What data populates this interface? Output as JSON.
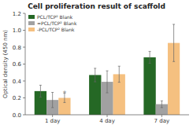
{
  "chart_data": {
    "type": "bar",
    "title": "Cell proliferation result of scaffold",
    "y_label": "Optical density (450 nm)",
    "categories": [
      "1 day",
      "4 day",
      "7 day"
    ],
    "series": [
      {
        "name": "PCL/TCP² Blank",
        "color": "#1e5c1e",
        "values": [
          0.28,
          0.47,
          0.68
        ],
        "errors": [
          0.07,
          0.08,
          0.07
        ]
      },
      {
        "name": "=PCL/TCP² Blank",
        "color": "#aaaaaa",
        "values": [
          0.175,
          0.39,
          0.125
        ],
        "errors": [
          0.09,
          0.13,
          0.04
        ]
      },
      {
        "name": "-PCL/TCP² Blank",
        "color": "#f5c080",
        "values": [
          0.2,
          0.48,
          0.85
        ],
        "errors": [
          0.055,
          0.095,
          0.22
        ]
      }
    ],
    "ylim": [
      0,
      1.2
    ],
    "yticks": [
      {
        "value": 0.0,
        "label": "0.0"
      },
      0.2,
      0.4,
      0.6,
      0.8,
      {
        "value": 1.0,
        "label": "1.0"
      },
      1.2
    ],
    "grid": false,
    "legend": "upper left",
    "annotations": [
      {
        "text": "*",
        "series": "-PCL/TCP² Blank",
        "category": "1 day"
      }
    ]
  }
}
